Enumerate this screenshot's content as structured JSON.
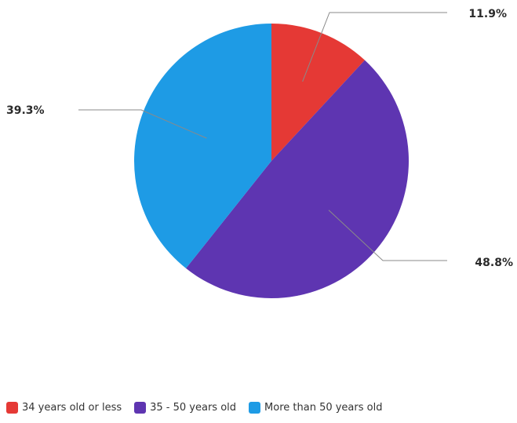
{
  "chart_data": {
    "type": "pie",
    "title": "",
    "slices": [
      {
        "label": "34 years old or less",
        "value": 11.9,
        "display": "11.9%",
        "color": "#e53935"
      },
      {
        "label": "35 - 50 years old",
        "value": 48.8,
        "display": "48.8%",
        "color": "#5e35b1"
      },
      {
        "label": "More than 50 years old",
        "value": 39.3,
        "display": "39.3%",
        "color": "#1e9be5"
      }
    ],
    "start_angle_deg": 0,
    "direction": "clockwise",
    "legend_position": "bottom"
  }
}
